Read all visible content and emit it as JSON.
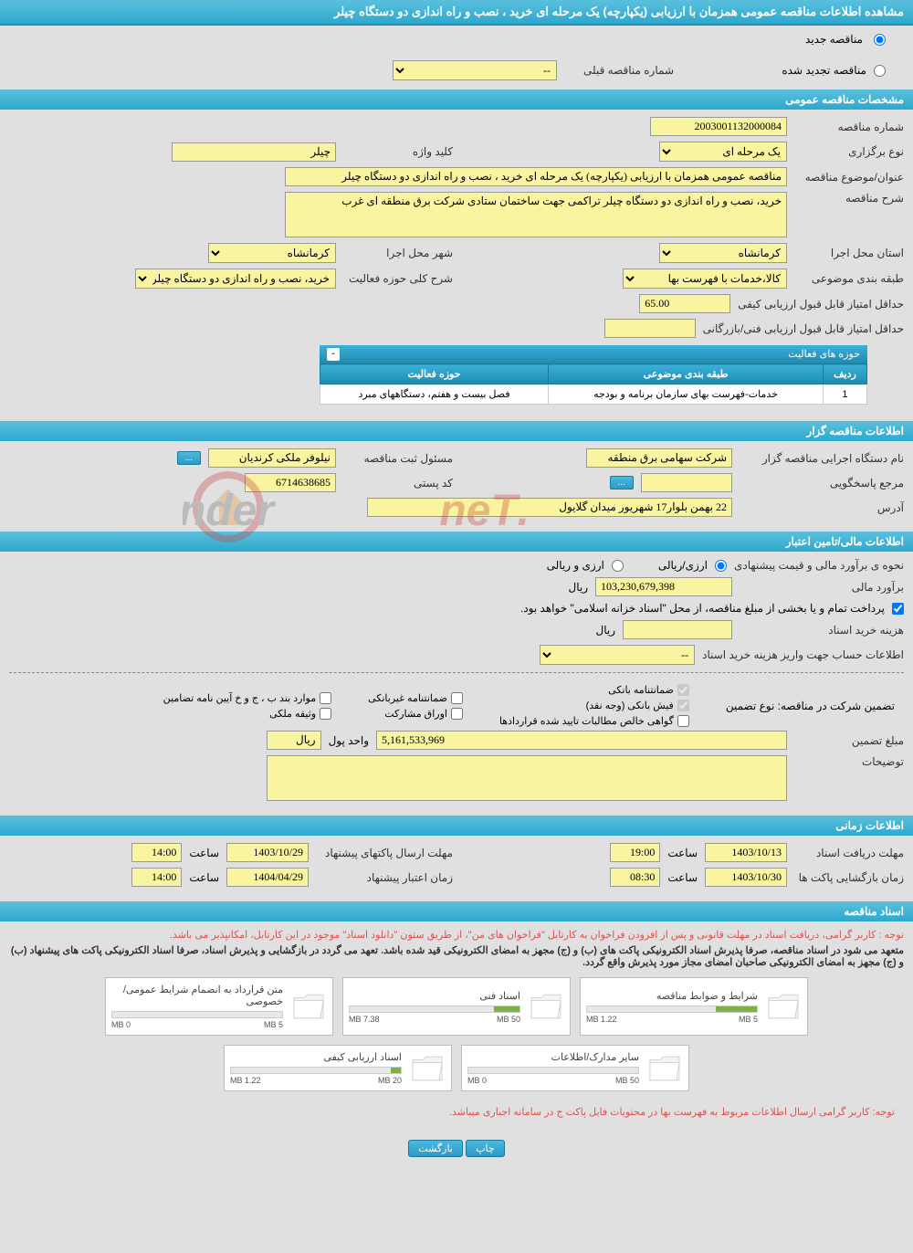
{
  "page_title": "مشاهده اطلاعات مناقصه عمومی همزمان با ارزیابی (یکپارچه) یک مرحله ای خرید ، نصب و راه اندازی دو دستگاه چیلر",
  "top_radio": {
    "new_tender": "مناقصه جدید",
    "renewed_tender": "مناقصه تجدید شده",
    "prev_select_label": "شماره مناقصه قبلی",
    "prev_select_value": "--"
  },
  "sections": {
    "general": "مشخصات مناقصه عمومی",
    "organizer": "اطلاعات مناقصه گزار",
    "financial": "اطلاعات مالی/تامین اعتبار",
    "timing": "اطلاعات زمانی",
    "documents": "اسناد مناقصه"
  },
  "general": {
    "tender_number_label": "شماره مناقصه",
    "tender_number": "2003001132000084",
    "holding_type_label": "نوع برگزاری",
    "holding_type": "یک مرحله ای",
    "keyword_label": "کلید واژه",
    "keyword": "چیلر",
    "subject_label": "عنوان/موضوع مناقصه",
    "subject": "مناقصه عمومی همزمان با ارزیابی (یکپارچه) یک مرحله ای خرید ، نصب و راه اندازی دو دستگاه چیلر",
    "description_label": "شرح مناقصه",
    "description": "خرید، نصب و راه اندازی دو دستگاه چیلر تراکمی جهت ساختمان ستادی شرکت برق منطقه ای غرب",
    "exec_province_label": "استان محل اجرا",
    "exec_province": "کرمانشاه",
    "exec_city_label": "شهر محل اجرا",
    "exec_city": "کرمانشاه",
    "category_label": "طبقه بندی موضوعی",
    "category": "کالا،خدمات با فهرست بها",
    "activity_scope_label": "شرح کلی حوزه فعالیت",
    "activity_scope": "خرید، نصب و راه اندازی دو دستگاه چیلر تراکمی جهت",
    "min_quality_score_label": "حداقل امتیاز قابل قبول ارزیابی کیفی",
    "min_quality_score": "65.00",
    "min_tech_score_label": "حداقل امتیاز قابل قبول ارزیابی فنی/بازرگانی",
    "min_tech_score": ""
  },
  "activity_table": {
    "caption": "حوزه های فعالیت",
    "headers": {
      "row": "ردیف",
      "category": "طبقه بندی موضوعی",
      "scope": "حوزه فعالیت"
    },
    "rows": [
      {
        "row": "1",
        "category": "خدمات-فهرست بهای سازمان برنامه و بودجه",
        "scope": "فصل بیست و هفتم، دستگاههای مبرد"
      }
    ]
  },
  "organizer": {
    "exec_org_label": "نام دستگاه اجرایی مناقصه گزار",
    "exec_org": "شرکت سهامی برق منطقه",
    "registrar_label": "مسئول ثبت مناقصه",
    "registrar": "نیلوفر ملکی کرندیان",
    "respond_ref_label": "مرجع پاسخگویی",
    "respond_ref": "",
    "postal_label": "کد پستی",
    "postal": "6714638685",
    "address_label": "آدرس",
    "address": "22 بهمن بلوار17 شهریور میدان گلایول",
    "more_btn": "..."
  },
  "financial": {
    "estimate_method_label": "نحوه ی برآورد مالی و قیمت پیشنهادی",
    "method_rial": "ارزی/ریالی",
    "method_currency": "ارزی و ریالی",
    "estimate_label": "برآورد مالی",
    "estimate": "103,230,679,398",
    "currency_unit": "ریال",
    "treasury_note": "پرداخت تمام و یا بخشی از مبلغ مناقصه، از محل \"اسناد خزانه اسلامی\" خواهد بود.",
    "doc_cost_label": "هزینه خرید اسناد",
    "doc_cost": "",
    "deposit_account_label": "اطلاعات حساب جهت واریز هزینه خرید اسناد",
    "deposit_account": "--",
    "guarantee_type_label": "تضمین شرکت در مناقصه:   نوع تضمین",
    "guarantee_types": {
      "bank_guarantee": "ضمانتنامه بانکی",
      "non_bank_guarantee": "ضمانتنامه غیربانکی",
      "bylaw": "موارد بند ب ، ج و خ آیین نامه تضامین",
      "bank_receipt": "فیش بانکی (وجه نقد)",
      "participation_bonds": "اوراق مشارکت",
      "property_collateral": "وثیقه ملکی",
      "net_claims": "گواهی خالص مطالبات تایید شده قراردادها"
    },
    "guarantee_amount_label": "مبلغ تضمین",
    "guarantee_amount": "5,161,533,969",
    "money_unit_label": "واحد پول",
    "money_unit": "ریال",
    "notes_label": "توضیحات",
    "notes": ""
  },
  "timing": {
    "doc_receive_deadline_label": "مهلت دریافت اسناد",
    "doc_receive_date": "1403/10/13",
    "doc_receive_time": "19:00",
    "packet_send_deadline_label": "مهلت ارسال پاکتهای پیشنهاد",
    "packet_send_date": "1403/10/29",
    "packet_send_time": "14:00",
    "envelope_open_label": "زمان بازگشایی پاکت ها",
    "envelope_open_date": "1403/10/30",
    "envelope_open_time": "08:30",
    "proposal_validity_label": "زمان اعتبار پیشنهاد",
    "proposal_validity_date": "1404/04/29",
    "proposal_validity_time": "14:00",
    "time_label": "ساعت"
  },
  "documents": {
    "note1": "توجه : کاربر گرامی، دریافت اسناد در مهلت قانونی و پس از افزودن فراخوان به کارتابل \"فراخوان های من\"، از طریق ستون \"دانلود اسناد\" موجود در این کارتابل، امکانپذیر می باشد.",
    "note2": "متعهد می شود در اسناد مناقصه، صرفا پذیرش اسناد الکترونیکی پاکت های (ب) و (ج) مجهز به امضای الکترونیکی قید شده باشد. تعهد می گردد در بازگشایی و پذیرش اسناد، صرفا اسناد الکترونیکی پاکت های پیشنهاد (ب) و (ج) مجهز به امضای الکترونیکی صاحبان امضای مجاز مورد پذیرش واقع گردد.",
    "items": [
      {
        "title": "شرایط و ضوابط مناقصه",
        "used": "1.22 MB",
        "total": "5 MB",
        "pct": 24
      },
      {
        "title": "اسناد فنی",
        "used": "7.38 MB",
        "total": "50 MB",
        "pct": 15
      },
      {
        "title": "متن قرارداد به انضمام شرایط عمومی/خصوصی",
        "used": "0 MB",
        "total": "5 MB",
        "pct": 0
      },
      {
        "title": "سایر مدارک/اطلاعات",
        "used": "0 MB",
        "total": "50 MB",
        "pct": 0
      },
      {
        "title": "اسناد ارزیابی کیفی",
        "used": "1.22 MB",
        "total": "20 MB",
        "pct": 6
      }
    ],
    "footer_note": "توجه: کاربر گرامی ارسال اطلاعات مربوط به فهرست بها در محتویات فایل پاکت ج در سامانه اجباری میباشد."
  },
  "buttons": {
    "print": "چاپ",
    "back": "بازگشت"
  },
  "colors": {
    "header_bg": "#2da8cc",
    "yellow": "#f8f4a0",
    "page_bg": "#e0e0e0",
    "red": "#d9534f"
  },
  "watermark": "AriaTender.neT"
}
